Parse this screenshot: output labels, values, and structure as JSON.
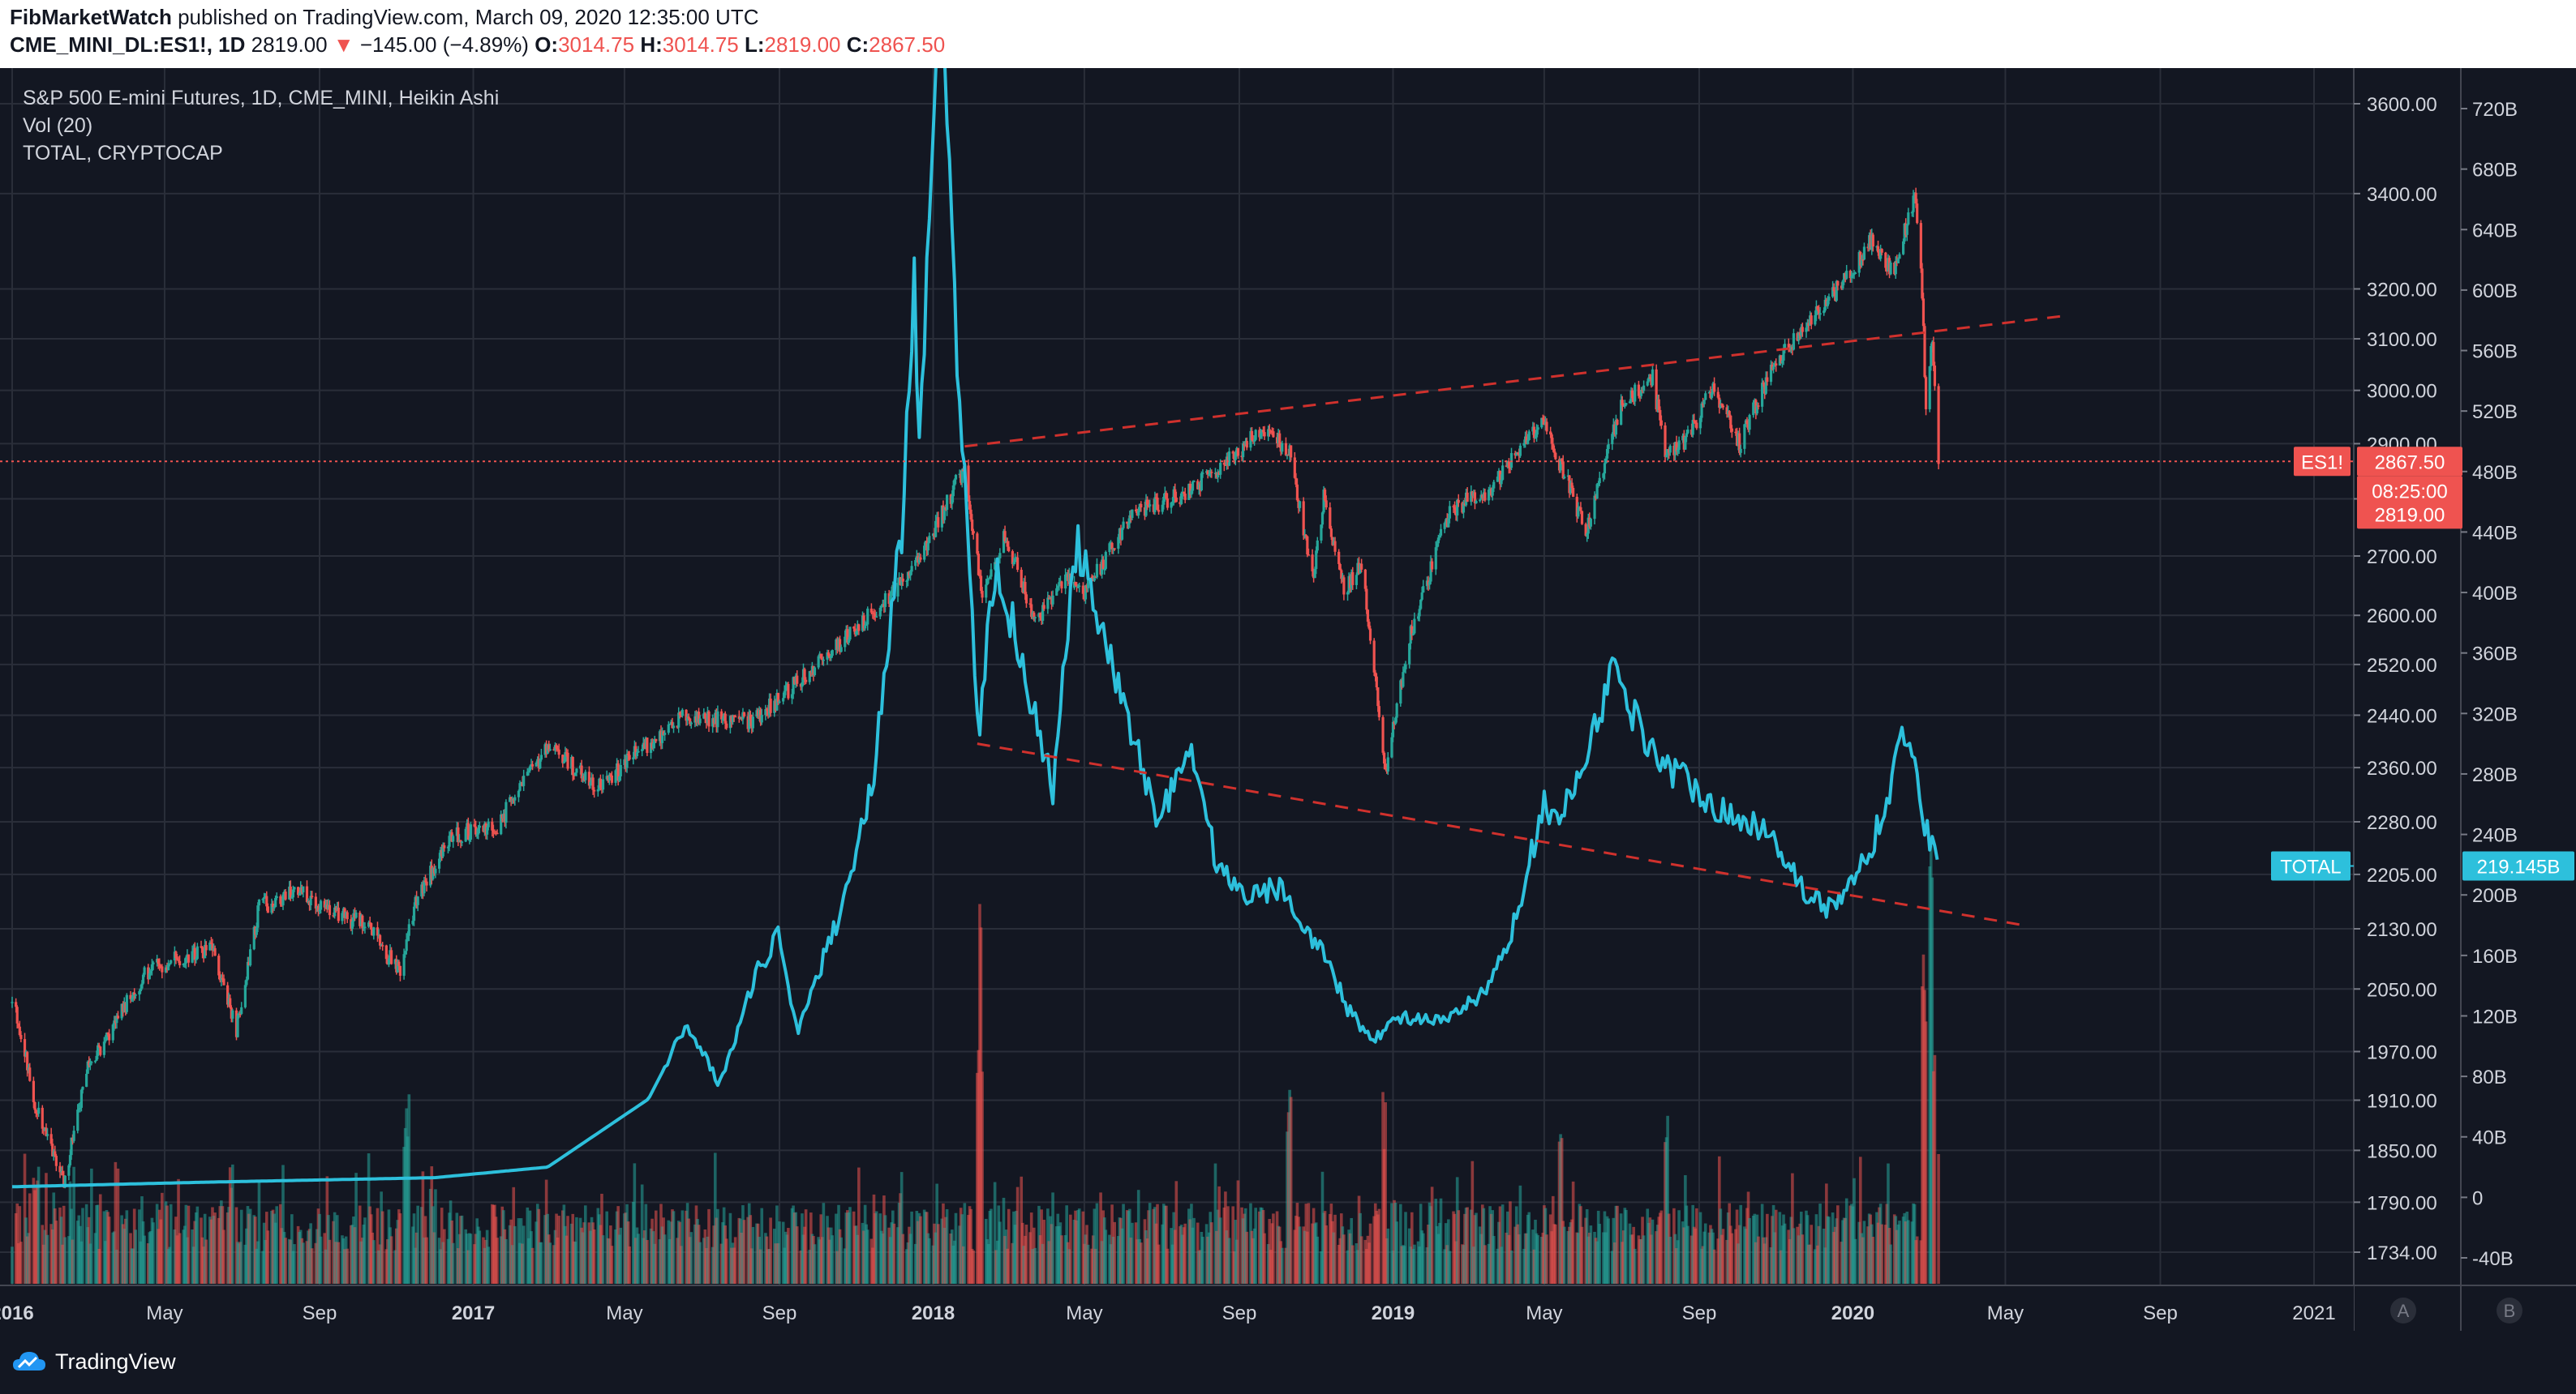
{
  "header": {
    "author": "FibMarketWatch",
    "published": "published on TradingView.com, March 09, 2020 12:35:00 UTC",
    "symbol": "CME_MINI_DL:ES1!, 1D",
    "last": "2819.00",
    "change": "−145.00 (−4.89%)",
    "o_label": "O:",
    "o_value": "3014.75",
    "h_label": "H:",
    "h_value": "3014.75",
    "l_label": "L:",
    "l_value": "2819.00",
    "c_label": "C:",
    "c_value": "2867.50"
  },
  "legend": {
    "main": "S&P 500 E-mini Futures, 1D, CME_MINI, Heikin Ashi",
    "vol": "Vol (20)",
    "total": "TOTAL, CRYPTOCAP"
  },
  "tags": {
    "es_symbol": "ES1!",
    "es_price": "2867.50",
    "countdown": "08:25:00",
    "es_low": "2819.00",
    "total_symbol": "TOTAL",
    "total_value": "219.145B"
  },
  "footer": {
    "brand": "TradingView"
  },
  "colors": {
    "background": "#131722",
    "grid": "#2a2e39",
    "up": "#26a69a",
    "down": "#ef5350",
    "crypto_line": "#2dc0dc",
    "trendline": "#d0312d"
  },
  "chart_data": {
    "type": "line",
    "title": "S&P 500 E-mini Futures, 1D, CME_MINI, Heikin Ashi",
    "scale_a": {
      "type": "log",
      "ticks": [
        3600,
        3400,
        3200,
        3100,
        3000,
        2900,
        2800,
        2700,
        2600,
        2520,
        2440,
        2360,
        2280,
        2205,
        2130,
        2050,
        1970,
        1910,
        1850,
        1790,
        1734
      ],
      "tick_labels": [
        "3600.00",
        "3400.00",
        "3200.00",
        "3100.00",
        "3000.00",
        "2900.00",
        "2800.00",
        "2700.00",
        "2600.00",
        "2520.00",
        "2440.00",
        "2360.00",
        "2280.00",
        "2205.00",
        "2130.00",
        "2050.00",
        "1970.00",
        "1910.00",
        "1850.00",
        "1790.00",
        "1734.00"
      ]
    },
    "scale_b": {
      "type": "linear",
      "ticks": [
        "720B",
        "680B",
        "640B",
        "600B",
        "560B",
        "520B",
        "480B",
        "440B",
        "400B",
        "360B",
        "320B",
        "280B",
        "240B",
        "200B",
        "160B",
        "120B",
        "80B",
        "40B",
        "0",
        "-40B"
      ],
      "values": [
        720,
        680,
        640,
        600,
        560,
        520,
        480,
        440,
        400,
        360,
        320,
        280,
        240,
        200,
        160,
        120,
        80,
        40,
        0,
        -40
      ]
    },
    "x_axis": {
      "ticks": [
        "2016",
        "May",
        "Sep",
        "2017",
        "May",
        "Sep",
        "2018",
        "May",
        "Sep",
        "2019",
        "May",
        "Sep",
        "2020",
        "May",
        "Sep",
        "2021"
      ],
      "tick_dates": [
        "2016-01-01",
        "2016-05-01",
        "2016-09-01",
        "2017-01-01",
        "2017-05-01",
        "2017-09-01",
        "2018-01-01",
        "2018-05-01",
        "2018-09-01",
        "2019-01-01",
        "2019-05-01",
        "2019-09-01",
        "2020-01-01",
        "2020-05-01",
        "2020-09-01",
        "2021-01-01"
      ],
      "bold": [
        "2016",
        "2017",
        "2018",
        "2019",
        "2020"
      ]
    },
    "panel_buttons": [
      "A",
      "B"
    ],
    "series": [
      {
        "type": "heikin-ashi",
        "unit": "index points",
        "scale": "a",
        "x": [
          "2016-01-01",
          "2016-01-20",
          "2016-02-11",
          "2016-03-01",
          "2016-04-20",
          "2016-06-08",
          "2016-06-27",
          "2016-07-15",
          "2016-08-15",
          "2016-09-13",
          "2016-10-10",
          "2016-11-04",
          "2016-11-15",
          "2016-12-13",
          "2017-01-20",
          "2017-03-01",
          "2017-04-13",
          "2017-05-15",
          "2017-06-20",
          "2017-08-11",
          "2017-09-20",
          "2017-10-31",
          "2017-12-01",
          "2018-01-01",
          "2018-01-26",
          "2018-02-09",
          "2018-02-27",
          "2018-03-23",
          "2018-04-15",
          "2018-05-01",
          "2018-06-12",
          "2018-07-20",
          "2018-08-20",
          "2018-09-21",
          "2018-10-11",
          "2018-10-29",
          "2018-11-07",
          "2018-11-23",
          "2018-12-07",
          "2018-12-26",
          "2019-01-15",
          "2019-02-15",
          "2019-03-20",
          "2019-04-30",
          "2019-05-16",
          "2019-06-03",
          "2019-07-01",
          "2019-07-26",
          "2019-08-05",
          "2019-08-20",
          "2019-09-12",
          "2019-10-03",
          "2019-11-01",
          "2019-12-01",
          "2020-01-01",
          "2020-01-17",
          "2020-02-01",
          "2020-02-19",
          "2020-02-24",
          "2020-02-28",
          "2020-03-04",
          "2020-03-09"
        ],
        "close": [
          2043,
          1900,
          1812,
          1950,
          2080,
          2100,
          2000,
          2160,
          2180,
          2155,
          2130,
          2070,
          2160,
          2260,
          2275,
          2390,
          2330,
          2390,
          2440,
          2430,
          2500,
          2575,
          2640,
          2740,
          2860,
          2620,
          2740,
          2590,
          2660,
          2640,
          2780,
          2810,
          2860,
          2930,
          2880,
          2660,
          2800,
          2640,
          2690,
          2350,
          2570,
          2780,
          2820,
          2945,
          2850,
          2740,
          2970,
          3025,
          2880,
          2900,
          3005,
          2900,
          3060,
          3140,
          3240,
          3305,
          3230,
          3392,
          3240,
          2978,
          3100,
          2867.5
        ]
      },
      {
        "name": "TOTAL, CRYPTOCAP",
        "unit": "billion USD",
        "scale": "b",
        "x": [
          "2016-01-01",
          "2016-06-01",
          "2016-12-01",
          "2017-03-01",
          "2017-05-20",
          "2017-06-20",
          "2017-07-15",
          "2017-08-15",
          "2017-09-01",
          "2017-09-15",
          "2017-10-20",
          "2017-11-15",
          "2017-12-08",
          "2017-12-17",
          "2017-12-22",
          "2018-01-07",
          "2018-01-15",
          "2018-02-06",
          "2018-02-20",
          "2018-03-05",
          "2018-04-06",
          "2018-04-25",
          "2018-05-15",
          "2018-06-29",
          "2018-07-25",
          "2018-08-14",
          "2018-09-05",
          "2018-10-05",
          "2018-11-14",
          "2018-11-25",
          "2018-12-15",
          "2019-01-10",
          "2019-02-08",
          "2019-03-15",
          "2019-04-02",
          "2019-05-01",
          "2019-05-15",
          "2019-06-26",
          "2019-07-16",
          "2019-08-06",
          "2019-09-01",
          "2019-09-25",
          "2019-10-26",
          "2019-11-25",
          "2019-12-17",
          "2020-01-15",
          "2020-02-13",
          "2020-02-28",
          "2020-03-09"
        ],
        "values": [
          7,
          10,
          13,
          20,
          65,
          115,
          75,
          150,
          175,
          110,
          190,
          280,
          450,
          600,
          500,
          825,
          640,
          310,
          420,
          380,
          270,
          435,
          370,
          250,
          300,
          220,
          200,
          205,
          150,
          125,
          105,
          120,
          115,
          135,
          165,
          260,
          250,
          350,
          310,
          285,
          270,
          250,
          245,
          200,
          190,
          230,
          310,
          245,
          219.145
        ]
      }
    ],
    "trendlines": [
      {
        "from": {
          "date": "2018-01-26",
          "value": 2895
        },
        "to": {
          "date": "2020-06-15",
          "value": 3145
        },
        "scale": "a",
        "style": "dashed"
      },
      {
        "from": {
          "date": "2018-02-05",
          "value": 300
        },
        "to": {
          "date": "2020-05-15",
          "value": 180
        },
        "scale": "b",
        "style": "dashed"
      }
    ],
    "price_line": 2867.5,
    "grid": true
  }
}
